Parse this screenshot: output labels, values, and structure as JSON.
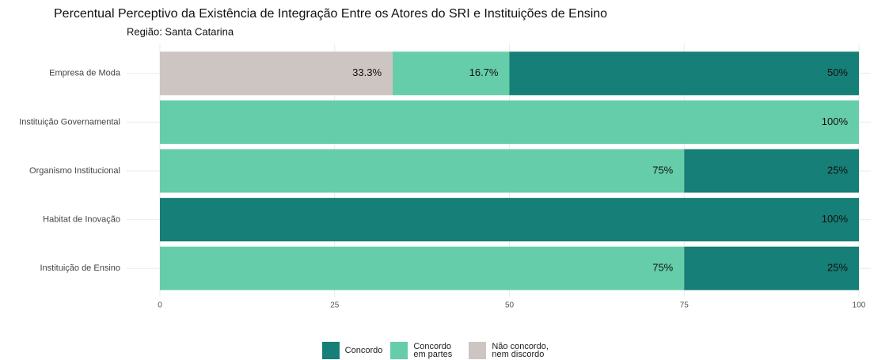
{
  "chart_data": {
    "type": "stacked-barh",
    "title": "Percentual Perceptivo da Existência de Integração Entre os Atores do SRI e Instituições de Ensino",
    "subtitle": "Região: Santa Catarina",
    "categories": [
      "Empresa de Moda",
      "Instituição Governamental",
      "Organismo Institucional",
      "Habitat de Inovação",
      "Instituição de Ensino"
    ],
    "series": [
      {
        "name": "Concordo",
        "color": "#167f77",
        "values": [
          50,
          0,
          25,
          100,
          25
        ],
        "value_labels": [
          "50%",
          null,
          "25%",
          "100%",
          "25%"
        ]
      },
      {
        "name": "Concordo em partes",
        "color": "#66cdaa",
        "values": [
          16.7,
          100,
          75,
          0,
          75
        ],
        "value_labels": [
          "16.7%",
          "100%",
          "75%",
          null,
          "75%"
        ]
      },
      {
        "name": "Não concordo, nem discordo",
        "color": "#cdc5c2",
        "values": [
          33.3,
          0,
          0,
          0,
          0
        ],
        "value_labels": [
          "33.3%",
          null,
          null,
          null,
          null
        ]
      }
    ],
    "xlim": [
      0,
      100
    ],
    "xticks": [
      0,
      25,
      50,
      75,
      100
    ],
    "grid": true,
    "legend": "bottom"
  }
}
